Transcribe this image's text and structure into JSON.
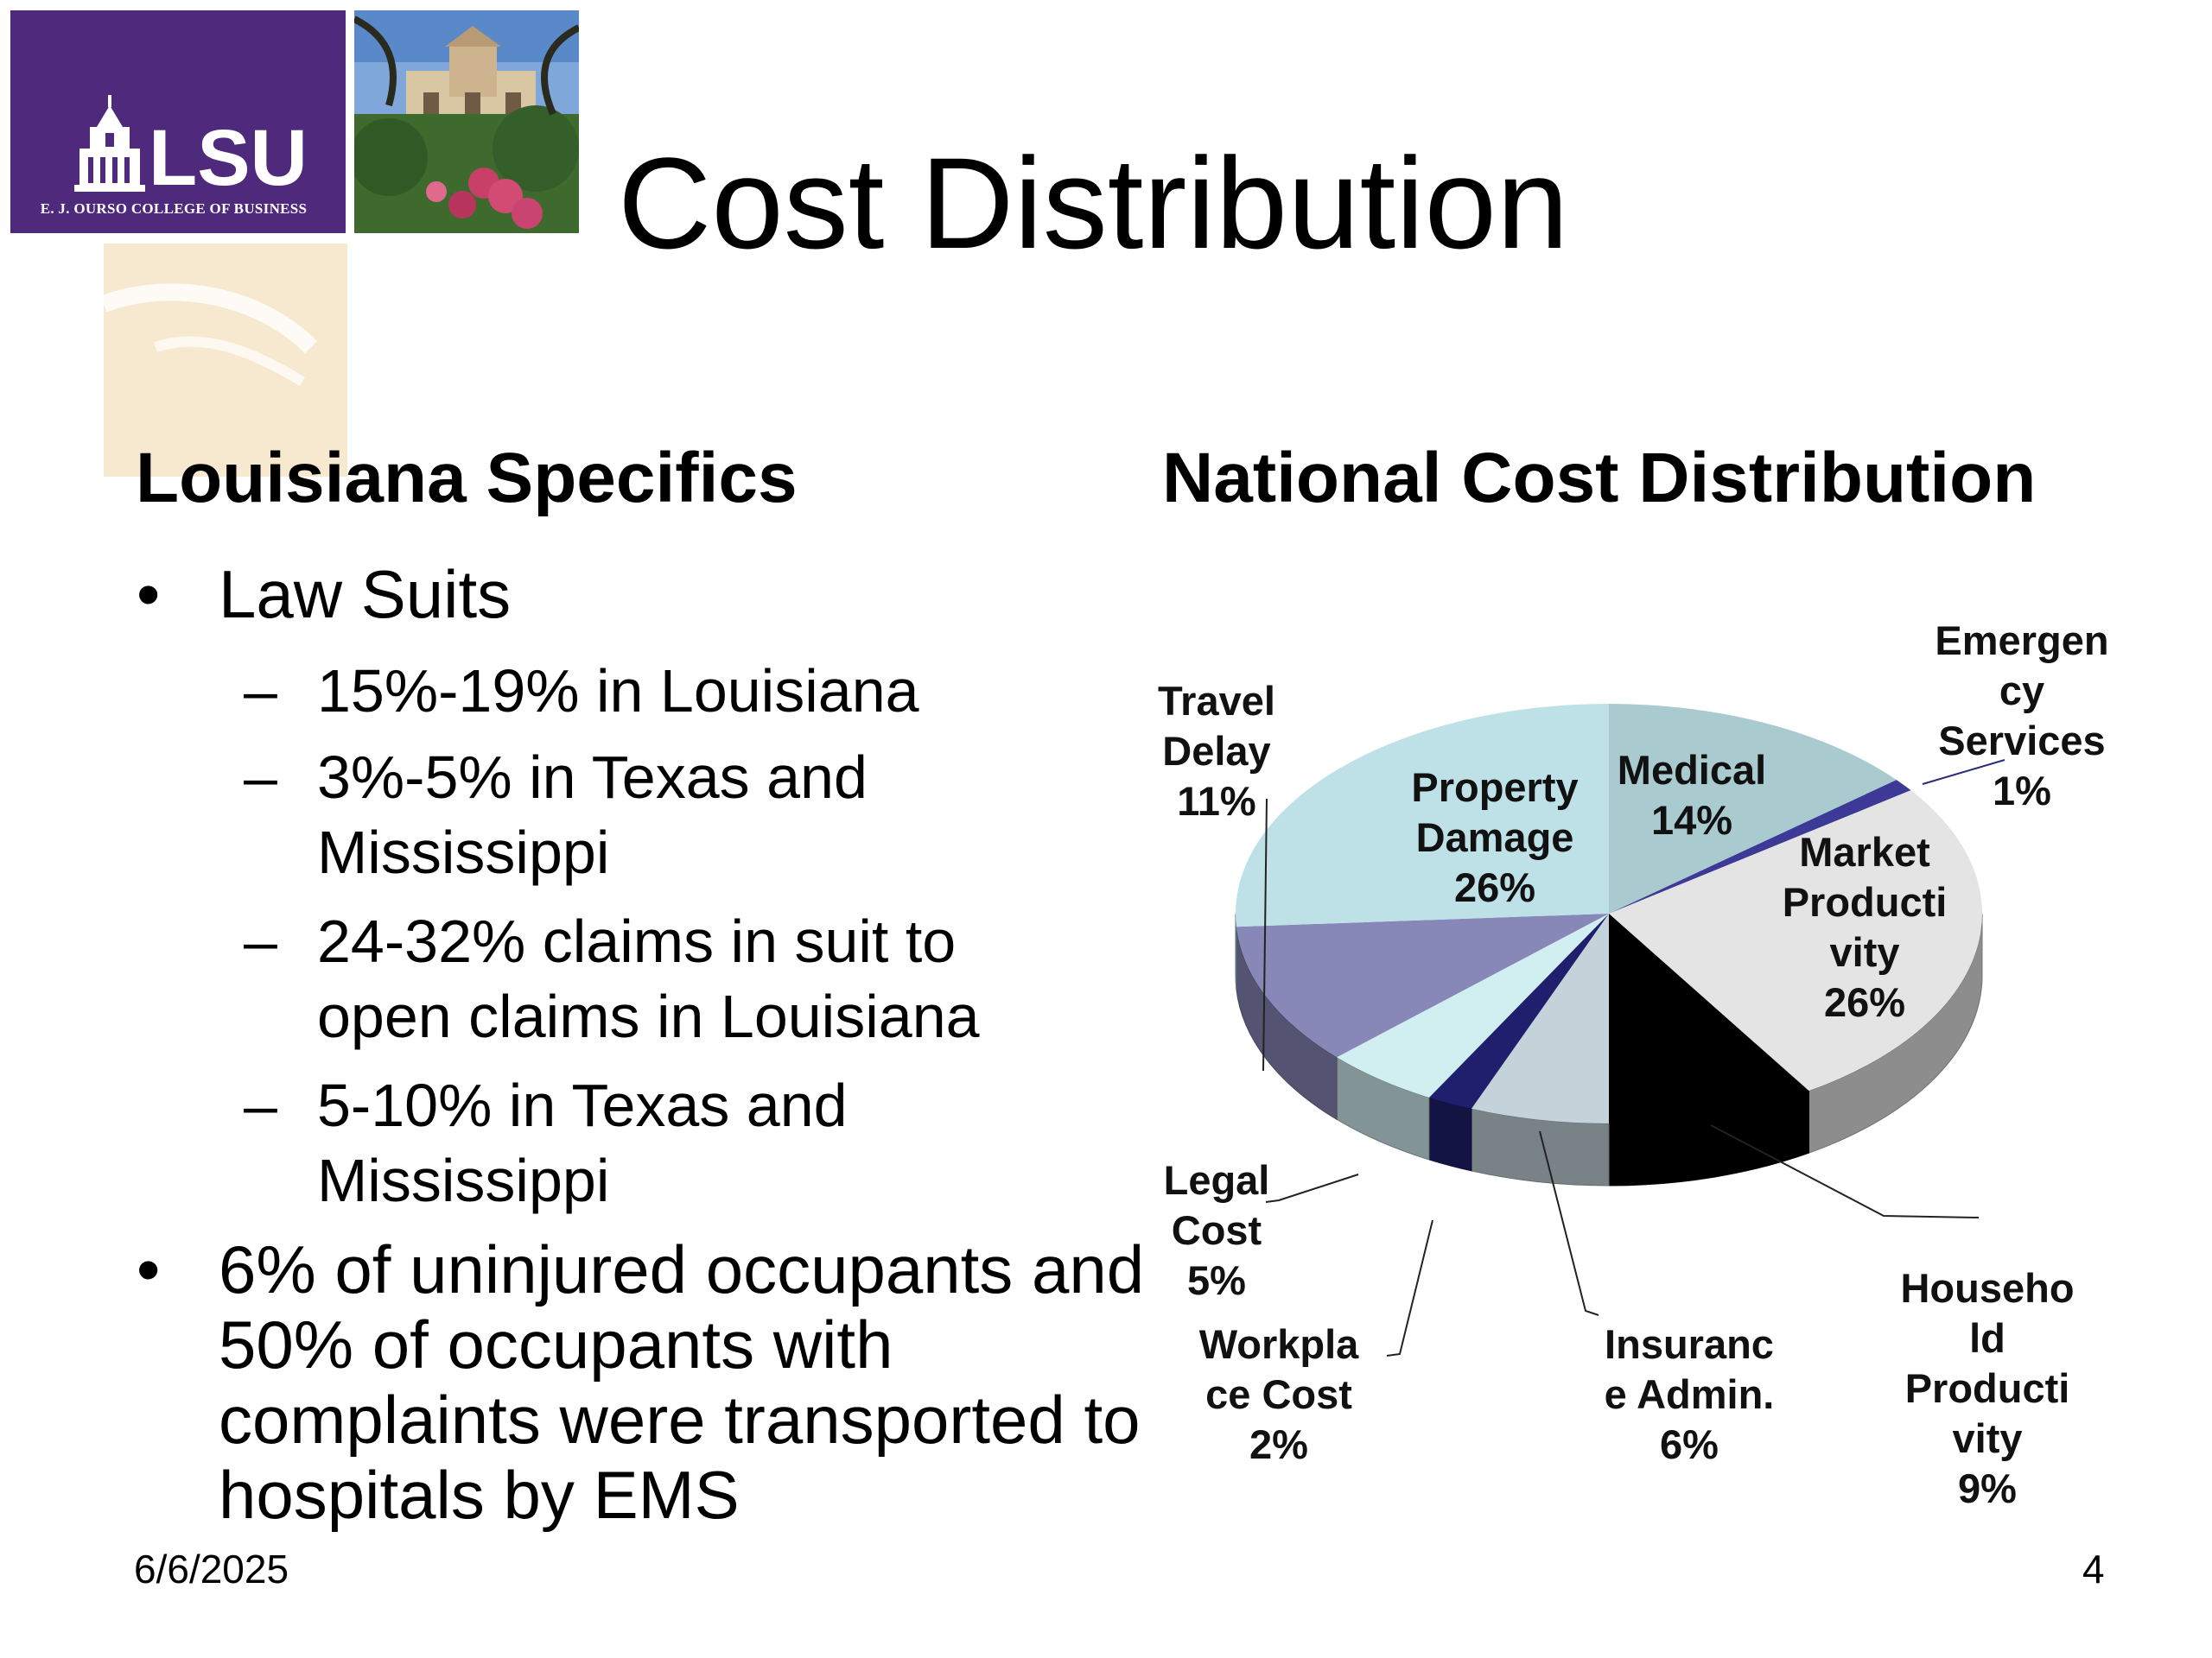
{
  "slide": {
    "title": "Cost Distribution",
    "logo_text": "LSU",
    "logo_tagline": "E. J. OURSO COLLEGE OF BUSINESS",
    "footer_date": "6/6/2025",
    "page_number": "4"
  },
  "left": {
    "heading": "Louisiana Specifics",
    "bullets": [
      {
        "text": "Law Suits",
        "sub": [
          {
            "lines": [
              "15%-19% in Louisiana"
            ]
          },
          {
            "lines": [
              "3%-5%  in Texas and",
              "Mississippi"
            ]
          },
          {
            "lines": [
              "24-32% claims in suit to",
              "open claims in Louisiana"
            ]
          },
          {
            "lines": [
              "5-10% in Texas and",
              "Mississippi"
            ]
          }
        ]
      },
      {
        "lines": [
          "6% of uninjured occupants and",
          "50% of occupants with",
          "complaints were transported to",
          "hospitals by EMS"
        ]
      }
    ]
  },
  "chart_data": {
    "type": "pie",
    "title": "National Cost Distribution",
    "slices": [
      {
        "name": "Medical",
        "label_lines": [
          "Medical",
          "14%"
        ],
        "value": 14,
        "color": "#a9cbd0"
      },
      {
        "name": "Emergency Services",
        "label_lines": [
          "Emergen",
          "cy",
          "Services",
          "1%"
        ],
        "value": 1,
        "color": "#3c3a96"
      },
      {
        "name": "Market Productivity",
        "label_lines": [
          "Market",
          "Producti",
          "vity",
          "26%"
        ],
        "value": 26,
        "color": "#e4e4e4"
      },
      {
        "name": "Household Productivity",
        "label_lines": [
          "Househo",
          "ld",
          "Producti",
          "vity",
          "9%"
        ],
        "value": 9,
        "color": "#000000"
      },
      {
        "name": "Insurance Admin.",
        "label_lines": [
          "Insuranc",
          "e Admin.",
          "6%"
        ],
        "value": 6,
        "color": "#c3d3d9"
      },
      {
        "name": "Workplace Cost",
        "label_lines": [
          "Workpla",
          "ce Cost",
          "2%"
        ],
        "value": 2,
        "color": "#1f1f6e"
      },
      {
        "name": "Legal Cost",
        "label_lines": [
          "Legal",
          "Cost",
          "5%"
        ],
        "value": 5,
        "color": "#d1eef1"
      },
      {
        "name": "Travel Delay",
        "label_lines": [
          "Travel",
          "Delay",
          "11%"
        ],
        "value": 11,
        "color": "#8787b8"
      },
      {
        "name": "Property Damage",
        "label_lines": [
          "Property",
          "Damage",
          "26%"
        ],
        "value": 26,
        "color": "#bde1e6"
      }
    ]
  }
}
